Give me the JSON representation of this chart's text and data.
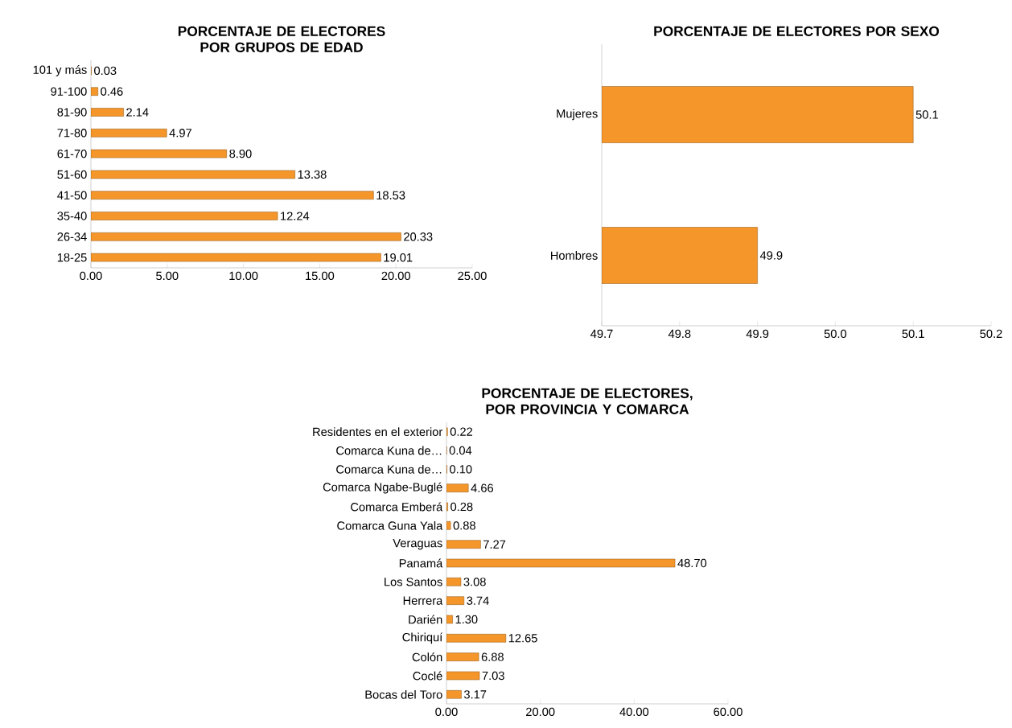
{
  "chart_data": [
    {
      "type": "bar",
      "orientation": "horizontal",
      "title": "PORCENTAJE DE ELECTORES POR GRUPOS DE EDAD",
      "color": "#f5962a",
      "categories": [
        "101 y más",
        "91-100",
        "81-90",
        "71-80",
        "61-70",
        "51-60",
        "41-50",
        "35-40",
        "26-34",
        "18-25"
      ],
      "values": [
        0.03,
        0.46,
        2.14,
        4.97,
        8.9,
        13.38,
        18.53,
        12.24,
        20.33,
        19.01
      ],
      "value_labels": [
        "0.03",
        "0.46",
        "2.14",
        "4.97",
        "8.90",
        "13.38",
        "18.53",
        "12.24",
        "20.33",
        "19.01"
      ],
      "xlim": [
        0,
        25
      ],
      "xticks": [
        {
          "value": 0,
          "label": "0.00"
        },
        {
          "value": 5,
          "label": "5.00"
        },
        {
          "value": 10,
          "label": "10.00"
        },
        {
          "value": 15,
          "label": "15.00"
        },
        {
          "value": 20,
          "label": "20.00"
        },
        {
          "value": 25,
          "label": "25.00"
        }
      ]
    },
    {
      "type": "bar",
      "orientation": "horizontal",
      "title": "PORCENTAJE DE ELECTORES POR SEXO",
      "color": "#f5962a",
      "categories": [
        "Mujeres",
        "Hombres"
      ],
      "values": [
        50.1,
        49.9
      ],
      "value_labels": [
        "50.1",
        "49.9"
      ],
      "xlim": [
        49.7,
        50.2
      ],
      "xticks": [
        49.7,
        49.8,
        49.9,
        {
          "value": 50.0,
          "label": "50.0"
        },
        50.1,
        50.2
      ]
    },
    {
      "type": "bar",
      "orientation": "horizontal",
      "title": "PORCENTAJE DE ELECTORES, POR PROVINCIA Y COMARCA",
      "color": "#f5962a",
      "categories": [
        "Residentes en el exterior",
        "Comarca Kuna de…",
        "Comarca Kuna de…",
        "Comarca Ngabe-Buglé",
        "Comarca Emberá",
        "Comarca Guna Yala",
        "Veraguas",
        "Panamá",
        "Los Santos",
        "Herrera",
        "Darién",
        "Chiriquí",
        "Colón",
        "Coclé",
        "Bocas del Toro"
      ],
      "values": [
        0.22,
        0.04,
        0.1,
        4.66,
        0.28,
        0.88,
        7.27,
        48.7,
        3.08,
        3.74,
        1.3,
        12.65,
        6.88,
        7.03,
        3.17
      ],
      "value_labels": [
        "0.22",
        "0.04",
        "0.10",
        "4.66",
        "0.28",
        "0.88",
        "7.27",
        "48.70",
        "3.08",
        "3.74",
        "1.30",
        "12.65",
        "6.88",
        "7.03",
        "3.17"
      ],
      "xlim": [
        0,
        60
      ],
      "xticks": [
        {
          "value": 0,
          "label": "0.00"
        },
        {
          "value": 20,
          "label": "20.00"
        },
        {
          "value": 40,
          "label": "40.00"
        },
        {
          "value": 60,
          "label": "60.00"
        }
      ]
    }
  ]
}
